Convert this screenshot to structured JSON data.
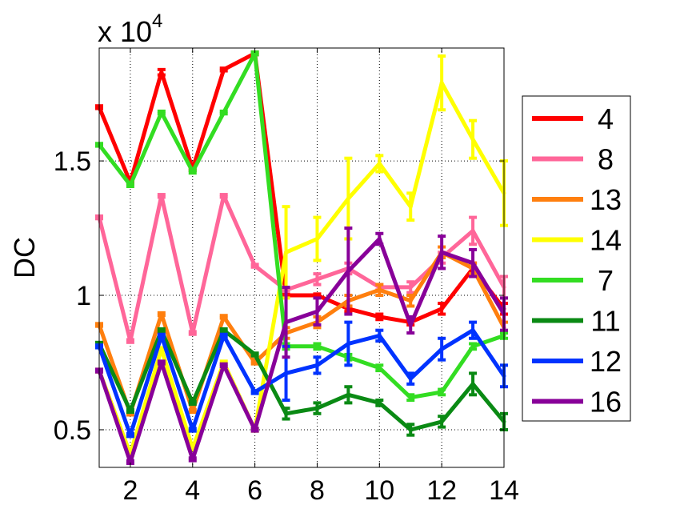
{
  "chart_data": {
    "type": "line",
    "title": "",
    "xlabel": "",
    "ylabel": "DC",
    "exponent_label": "x 10",
    "exponent_power": "4",
    "xlim": [
      1,
      14
    ],
    "ylim": [
      0.36,
      1.92
    ],
    "grid": true,
    "legend_position": "right",
    "x": [
      1,
      2,
      3,
      4,
      5,
      6,
      7,
      8,
      9,
      10,
      11,
      12,
      13,
      14
    ],
    "x_ticks": [
      2,
      4,
      6,
      8,
      10,
      12,
      14
    ],
    "x_tick_labels": [
      "2",
      "4",
      "6",
      "8",
      "10",
      "12",
      "14"
    ],
    "y_ticks": [
      0.5,
      1,
      1.5
    ],
    "y_tick_labels": [
      "0.5",
      "1",
      "1.5"
    ],
    "series": [
      {
        "name": "4",
        "color": "#ff0000",
        "values": [
          1.7,
          1.42,
          1.83,
          1.47,
          1.84,
          1.9,
          1.0,
          1.0,
          0.95,
          0.92,
          0.9,
          0.95,
          1.1,
          0.95
        ],
        "errors": [
          0.005,
          0.005,
          0.01,
          0.005,
          0.005,
          0.005,
          0.005,
          0.005,
          0.01,
          0.01,
          0.01,
          0.02,
          0.02,
          0.02
        ]
      },
      {
        "name": "8",
        "color": "#ff6699",
        "values": [
          1.29,
          0.83,
          1.37,
          0.86,
          1.37,
          1.11,
          1.02,
          1.06,
          1.1,
          1.03,
          1.03,
          1.14,
          1.24,
          1.03
        ],
        "errors": [
          0.005,
          0.005,
          0.005,
          0.005,
          0.005,
          0.005,
          0.005,
          0.02,
          0.02,
          0.01,
          0.02,
          0.02,
          0.05,
          0.04
        ]
      },
      {
        "name": "13",
        "color": "#ff7f0e",
        "values": [
          0.89,
          0.56,
          0.93,
          0.57,
          0.92,
          0.75,
          0.86,
          0.9,
          0.98,
          1.02,
          0.98,
          1.16,
          1.1,
          0.88
        ],
        "errors": [
          0.005,
          0.005,
          0.005,
          0.005,
          0.005,
          0.005,
          0.02,
          0.02,
          0.02,
          0.02,
          0.02,
          0.02,
          0.02,
          0.02
        ]
      },
      {
        "name": "14",
        "color": "#ffff00",
        "values": [
          0.72,
          0.41,
          0.8,
          0.43,
          0.75,
          0.5,
          1.16,
          1.21,
          1.36,
          1.49,
          1.33,
          1.79,
          1.58,
          1.38
        ],
        "errors": [
          0.005,
          0.005,
          0.005,
          0.005,
          0.005,
          0.005,
          0.17,
          0.08,
          0.15,
          0.03,
          0.05,
          0.1,
          0.07,
          0.12
        ]
      },
      {
        "name": "7",
        "color": "#33dd22",
        "values": [
          1.56,
          1.41,
          1.68,
          1.46,
          1.68,
          1.9,
          0.81,
          0.81,
          0.77,
          0.73,
          0.62,
          0.64,
          0.81,
          0.85
        ],
        "errors": [
          0.005,
          0.005,
          0.005,
          0.005,
          0.005,
          0.005,
          0.01,
          0.01,
          0.01,
          0.01,
          0.01,
          0.01,
          0.01,
          0.01
        ]
      },
      {
        "name": "11",
        "color": "#0a8a14",
        "values": [
          0.82,
          0.57,
          0.87,
          0.6,
          0.87,
          0.78,
          0.56,
          0.58,
          0.63,
          0.6,
          0.5,
          0.53,
          0.67,
          0.53
        ],
        "errors": [
          0.005,
          0.005,
          0.005,
          0.005,
          0.005,
          0.005,
          0.02,
          0.02,
          0.03,
          0.01,
          0.02,
          0.02,
          0.04,
          0.03
        ]
      },
      {
        "name": "12",
        "color": "#0033ff",
        "values": [
          0.81,
          0.48,
          0.85,
          0.5,
          0.85,
          0.64,
          0.71,
          0.74,
          0.82,
          0.85,
          0.69,
          0.8,
          0.87,
          0.7
        ],
        "errors": [
          0.005,
          0.005,
          0.005,
          0.005,
          0.005,
          0.005,
          0.1,
          0.03,
          0.08,
          0.02,
          0.02,
          0.04,
          0.03,
          0.04
        ]
      },
      {
        "name": "16",
        "color": "#880099",
        "values": [
          0.72,
          0.38,
          0.75,
          0.39,
          0.74,
          0.5,
          0.9,
          0.94,
          1.09,
          1.21,
          0.89,
          1.16,
          1.12,
          0.93
        ],
        "errors": [
          0.005,
          0.005,
          0.005,
          0.005,
          0.005,
          0.005,
          0.13,
          0.05,
          0.16,
          0.02,
          0.03,
          0.06,
          0.05,
          0.06
        ]
      }
    ]
  }
}
